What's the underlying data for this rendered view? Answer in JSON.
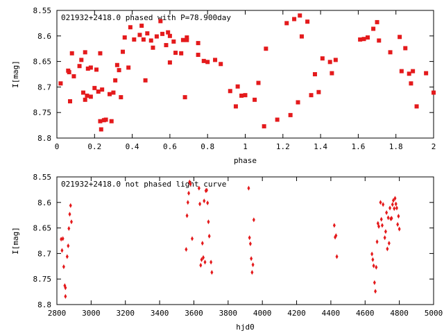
{
  "colors": {
    "marker": "#e41a1c",
    "axis": "#000000",
    "background": "#ffffff"
  },
  "chart_data": [
    {
      "type": "scatter",
      "title": "021932+2418.0 phased with P=78.900day",
      "xlabel": "phase",
      "ylabel": "I[mag]",
      "xlim": [
        0,
        2
      ],
      "ylim": [
        8.8,
        8.55
      ],
      "y_inverted": true,
      "xticks": [
        0,
        0.2,
        0.4,
        0.6,
        0.8,
        1,
        1.2,
        1.4,
        1.6,
        1.8,
        2
      ],
      "xtick_labels": [
        "0",
        "0.2",
        "0.4",
        "0.6",
        "0.8",
        "1",
        "1.2",
        "1.4",
        "1.6",
        "1.8",
        "2"
      ],
      "yticks": [
        8.55,
        8.6,
        8.65,
        8.7,
        8.75,
        8.8
      ],
      "ytick_labels": [
        "8.55",
        "8.6",
        "8.65",
        "8.7",
        "8.75",
        "8.8"
      ],
      "marker": "filled-square",
      "points": [
        [
          0.02,
          8.693
        ],
        [
          0.06,
          8.668
        ],
        [
          0.065,
          8.671
        ],
        [
          0.07,
          8.728
        ],
        [
          0.08,
          8.634
        ],
        [
          0.09,
          8.679
        ],
        [
          0.12,
          8.659
        ],
        [
          0.13,
          8.647
        ],
        [
          0.14,
          8.711
        ],
        [
          0.15,
          8.632
        ],
        [
          0.15,
          8.725
        ],
        [
          0.16,
          8.717
        ],
        [
          0.165,
          8.664
        ],
        [
          0.18,
          8.719
        ],
        [
          0.18,
          8.662
        ],
        [
          0.2,
          8.702
        ],
        [
          0.21,
          8.666
        ],
        [
          0.22,
          8.709
        ],
        [
          0.23,
          8.634
        ],
        [
          0.23,
          8.767
        ],
        [
          0.235,
          8.783
        ],
        [
          0.24,
          8.705
        ],
        [
          0.25,
          8.765
        ],
        [
          0.26,
          8.764
        ],
        [
          0.28,
          8.714
        ],
        [
          0.29,
          8.767
        ],
        [
          0.3,
          8.711
        ],
        [
          0.31,
          8.687
        ],
        [
          0.32,
          8.657
        ],
        [
          0.33,
          8.667
        ],
        [
          0.34,
          8.72
        ],
        [
          0.35,
          8.631
        ],
        [
          0.36,
          8.603
        ],
        [
          0.38,
          8.662
        ],
        [
          0.39,
          8.583
        ],
        [
          0.41,
          8.607
        ],
        [
          0.44,
          8.598
        ],
        [
          0.45,
          8.58
        ],
        [
          0.46,
          8.607
        ],
        [
          0.47,
          8.687
        ],
        [
          0.48,
          8.595
        ],
        [
          0.5,
          8.609
        ],
        [
          0.51,
          8.623
        ],
        [
          0.53,
          8.601
        ],
        [
          0.55,
          8.571
        ],
        [
          0.56,
          8.596
        ],
        [
          0.58,
          8.618
        ],
        [
          0.59,
          8.593
        ],
        [
          0.6,
          8.6
        ],
        [
          0.6,
          8.652
        ],
        [
          0.62,
          8.611
        ],
        [
          0.63,
          8.633
        ],
        [
          0.66,
          8.634
        ],
        [
          0.67,
          8.608
        ],
        [
          0.68,
          8.72
        ],
        [
          0.69,
          8.603
        ],
        [
          0.69,
          8.608
        ],
        [
          0.75,
          8.614
        ],
        [
          0.75,
          8.637
        ],
        [
          0.78,
          8.649
        ],
        [
          0.8,
          8.651
        ],
        [
          0.84,
          8.647
        ],
        [
          0.87,
          8.655
        ],
        [
          0.92,
          8.708
        ],
        [
          0.95,
          8.738
        ],
        [
          0.96,
          8.699
        ],
        [
          0.98,
          8.717
        ],
        [
          1,
          8.716
        ],
        [
          1.05,
          8.725
        ],
        [
          1.07,
          8.692
        ],
        [
          1.1,
          8.777
        ],
        [
          1.11,
          8.625
        ],
        [
          1.17,
          8.764
        ],
        [
          1.22,
          8.575
        ],
        [
          1.24,
          8.755
        ],
        [
          1.26,
          8.567
        ],
        [
          1.28,
          8.73
        ],
        [
          1.29,
          8.56
        ],
        [
          1.3,
          8.601
        ],
        [
          1.33,
          8.572
        ],
        [
          1.35,
          8.716
        ],
        [
          1.37,
          8.675
        ],
        [
          1.39,
          8.71
        ],
        [
          1.41,
          8.644
        ],
        [
          1.45,
          8.651
        ],
        [
          1.46,
          8.673
        ],
        [
          1.48,
          8.647
        ],
        [
          1.61,
          8.607
        ],
        [
          1.63,
          8.606
        ],
        [
          1.65,
          8.603
        ],
        [
          1.68,
          8.586
        ],
        [
          1.7,
          8.573
        ],
        [
          1.71,
          8.609
        ],
        [
          1.77,
          8.632
        ],
        [
          1.82,
          8.602
        ],
        [
          1.83,
          8.669
        ],
        [
          1.85,
          8.624
        ],
        [
          1.87,
          8.674
        ],
        [
          1.88,
          8.693
        ],
        [
          1.89,
          8.669
        ],
        [
          1.91,
          8.738
        ],
        [
          1.96,
          8.673
        ],
        [
          2,
          8.711
        ]
      ]
    },
    {
      "type": "scatter",
      "title": "021932+2418.0 not phased light curve",
      "xlabel": "hjd0",
      "ylabel": "I[mag]",
      "xlim": [
        2800,
        5000
      ],
      "ylim": [
        8.8,
        8.55
      ],
      "y_inverted": true,
      "xticks": [
        2800,
        3000,
        3200,
        3400,
        3600,
        3800,
        4000,
        4200,
        4400,
        4600,
        4800,
        5000
      ],
      "xtick_labels": [
        "2800",
        "3000",
        "3200",
        "3400",
        "3600",
        "3800",
        "4000",
        "4200",
        "4400",
        "4600",
        "4800",
        "5000"
      ],
      "yticks": [
        8.55,
        8.6,
        8.65,
        8.7,
        8.75,
        8.8
      ],
      "ytick_labels": [
        "8.55",
        "8.6",
        "8.65",
        "8.7",
        "8.75",
        "8.8"
      ],
      "marker": "filled-diamond",
      "points": [
        [
          2825,
          8.672
        ],
        [
          2830,
          8.694
        ],
        [
          2835,
          8.671
        ],
        [
          2840,
          8.726
        ],
        [
          2846,
          8.763
        ],
        [
          2850,
          8.767
        ],
        [
          2850,
          8.784
        ],
        [
          2860,
          8.706
        ],
        [
          2866,
          8.685
        ],
        [
          2870,
          8.651
        ],
        [
          2875,
          8.623
        ],
        [
          2880,
          8.606
        ],
        [
          2885,
          8.638
        ],
        [
          3555,
          8.692
        ],
        [
          3560,
          8.626
        ],
        [
          3565,
          8.6
        ],
        [
          3570,
          8.582
        ],
        [
          3575,
          8.56
        ],
        [
          3580,
          8.564
        ],
        [
          3590,
          8.671
        ],
        [
          3630,
          8.572
        ],
        [
          3635,
          8.603
        ],
        [
          3640,
          8.723
        ],
        [
          3645,
          8.712
        ],
        [
          3650,
          8.68
        ],
        [
          3655,
          8.708
        ],
        [
          3660,
          8.597
        ],
        [
          3665,
          8.717
        ],
        [
          3670,
          8.577
        ],
        [
          3675,
          8.576
        ],
        [
          3680,
          8.601
        ],
        [
          3685,
          8.638
        ],
        [
          3690,
          8.666
        ],
        [
          3700,
          8.717
        ],
        [
          3705,
          8.737
        ],
        [
          3920,
          8.572
        ],
        [
          3925,
          8.669
        ],
        [
          3930,
          8.681
        ],
        [
          3935,
          8.71
        ],
        [
          3940,
          8.737
        ],
        [
          3945,
          8.722
        ],
        [
          3950,
          8.634
        ],
        [
          4420,
          8.645
        ],
        [
          4425,
          8.668
        ],
        [
          4430,
          8.665
        ],
        [
          4435,
          8.706
        ],
        [
          4640,
          8.701
        ],
        [
          4645,
          8.712
        ],
        [
          4650,
          8.724
        ],
        [
          4655,
          8.757
        ],
        [
          4660,
          8.774
        ],
        [
          4665,
          8.727
        ],
        [
          4670,
          8.677
        ],
        [
          4675,
          8.641
        ],
        [
          4680,
          8.647
        ],
        [
          4690,
          8.6
        ],
        [
          4695,
          8.633
        ],
        [
          4700,
          8.645
        ],
        [
          4705,
          8.604
        ],
        [
          4715,
          8.669
        ],
        [
          4720,
          8.657
        ],
        [
          4725,
          8.62
        ],
        [
          4730,
          8.691
        ],
        [
          4735,
          8.63
        ],
        [
          4740,
          8.68
        ],
        [
          4745,
          8.611
        ],
        [
          4750,
          8.632
        ],
        [
          4755,
          8.631
        ],
        [
          4760,
          8.604
        ],
        [
          4765,
          8.596
        ],
        [
          4770,
          8.612
        ],
        [
          4775,
          8.592
        ],
        [
          4780,
          8.603
        ],
        [
          4785,
          8.611
        ],
        [
          4790,
          8.643
        ],
        [
          4795,
          8.627
        ],
        [
          4800,
          8.652
        ]
      ]
    }
  ]
}
